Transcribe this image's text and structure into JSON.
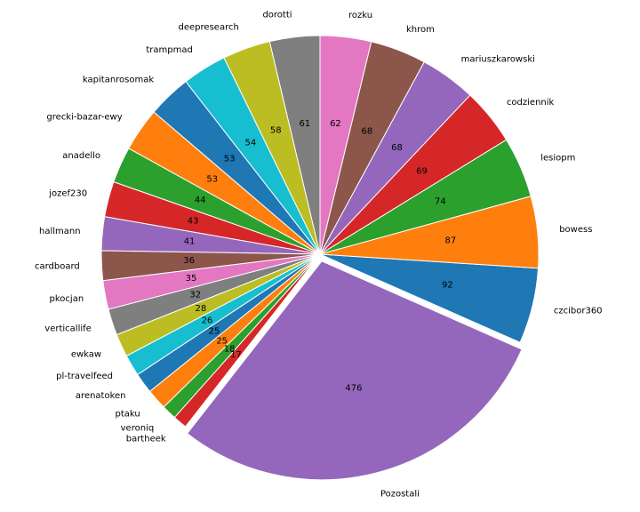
{
  "chart_data": {
    "type": "pie",
    "start_angle_deg": 90,
    "direction": "counterclockwise",
    "explode_last_slice": true,
    "slices": [
      {
        "label": "dorotti",
        "value": 61,
        "color": "#7f7f7f"
      },
      {
        "label": "deepresearch",
        "value": 58,
        "color": "#bcbd22"
      },
      {
        "label": "trampmad",
        "value": 54,
        "color": "#17becf"
      },
      {
        "label": "kapitanrosomak",
        "value": 53,
        "color": "#1f77b4"
      },
      {
        "label": "grecki-bazar-ewy",
        "value": 53,
        "color": "#ff7f0e"
      },
      {
        "label": "anadello",
        "value": 44,
        "color": "#2ca02c"
      },
      {
        "label": "jozef230",
        "value": 43,
        "color": "#d62728"
      },
      {
        "label": "hallmann",
        "value": 41,
        "color": "#9467bd"
      },
      {
        "label": "cardboard",
        "value": 36,
        "color": "#8c564b"
      },
      {
        "label": "pkocjan",
        "value": 35,
        "color": "#e377c2"
      },
      {
        "label": "verticallife",
        "value": 32,
        "color": "#7f7f7f"
      },
      {
        "label": "ewkaw",
        "value": 28,
        "color": "#bcbd22"
      },
      {
        "label": "pl-travelfeed",
        "value": 26,
        "color": "#17becf"
      },
      {
        "label": "arenatoken",
        "value": 25,
        "color": "#1f77b4"
      },
      {
        "label": "ptaku",
        "value": 25,
        "color": "#ff7f0e"
      },
      {
        "label": "veroniq",
        "value": 18,
        "color": "#2ca02c"
      },
      {
        "label": "bartheek",
        "value": 17,
        "color": "#d62728"
      },
      {
        "label": "Pozostali",
        "value": 476,
        "color": "#9467bd"
      },
      {
        "label": "czcibor360",
        "value": 92,
        "color": "#1f77b4"
      },
      {
        "label": "bowess",
        "value": 87,
        "color": "#ff7f0e"
      },
      {
        "label": "lesiopm",
        "value": 74,
        "color": "#2ca02c"
      },
      {
        "label": "codziennik",
        "value": 69,
        "color": "#d62728"
      },
      {
        "label": "mariuszkarowski",
        "value": 68,
        "color": "#9467bd"
      },
      {
        "label": "khrom",
        "value": 68,
        "color": "#8c564b"
      },
      {
        "label": "rozku",
        "value": 62,
        "color": "#e377c2"
      }
    ]
  }
}
